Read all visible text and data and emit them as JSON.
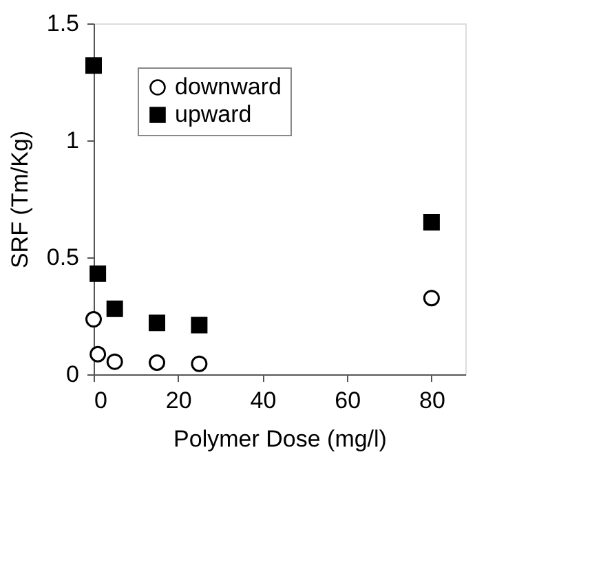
{
  "chart_data": {
    "type": "scatter",
    "xlabel": "Polymer Dose (mg/l)",
    "ylabel": "SRF (Tm/Kg)",
    "x": [
      0,
      1,
      5,
      15,
      25,
      80
    ],
    "series": [
      {
        "name": "downward",
        "color": "#000000",
        "marker": "circle",
        "values": [
          0.235,
          0.086,
          0.054,
          0.05,
          0.045,
          0.326
        ]
      },
      {
        "name": "upward",
        "color": "#000000",
        "marker": "square",
        "values": [
          1.32,
          0.43,
          0.28,
          0.22,
          0.21,
          0.65
        ]
      }
    ],
    "xlim": [
      0,
      88
    ],
    "xticks": [
      0,
      20,
      40,
      60,
      80
    ],
    "ylim": [
      0,
      1.5
    ],
    "yticks": [
      0,
      0.5,
      1,
      1.5
    ],
    "grid": false,
    "legend": "top left"
  }
}
